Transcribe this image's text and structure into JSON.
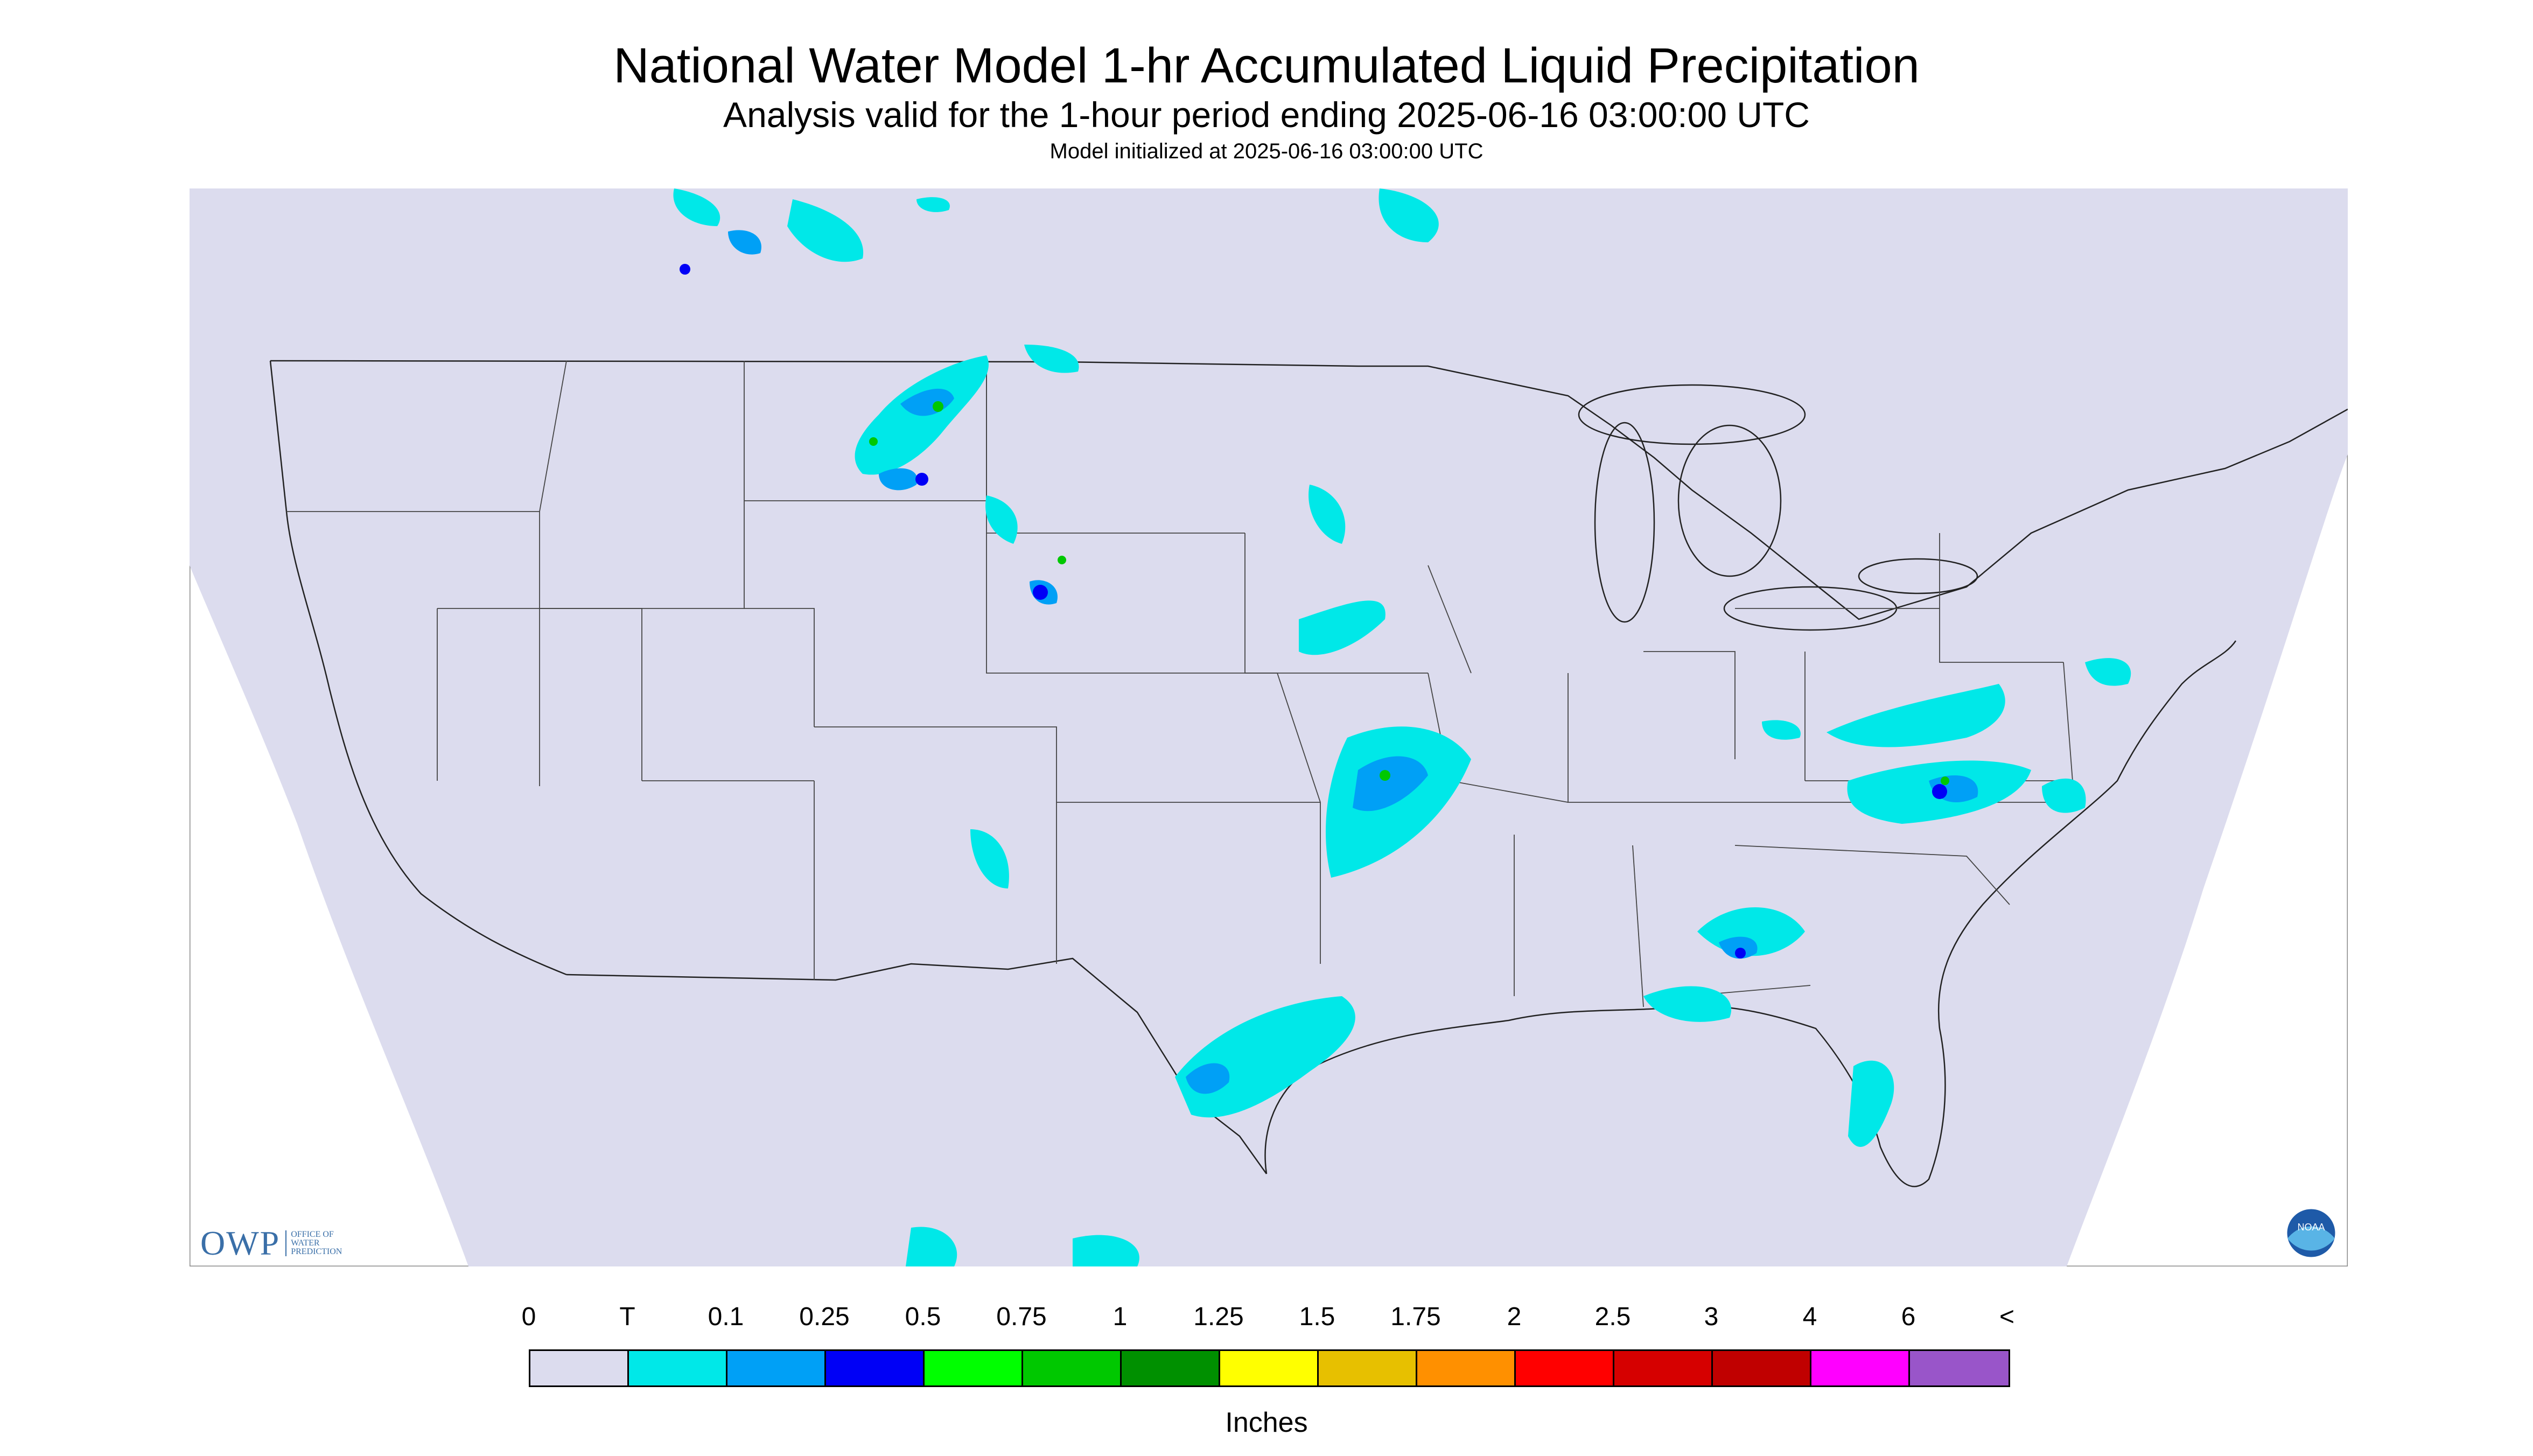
{
  "header": {
    "title": "National Water Model 1-hr Accumulated Liquid Precipitation",
    "subtitle": "Analysis valid for the 1-hour period ending 2025-06-16 03:00:00 UTC",
    "init": "Model initialized at 2025-06-16 03:00:00 UTC"
  },
  "legend": {
    "labels": [
      "0",
      "T",
      "0.1",
      "0.25",
      "0.5",
      "0.75",
      "1",
      "1.25",
      "1.5",
      "1.75",
      "2",
      "2.5",
      "3",
      "4",
      "6",
      "<"
    ],
    "colors": [
      "#dcdcee",
      "#00e8e8",
      "#00a0f6",
      "#0000f6",
      "#00ff00",
      "#00c800",
      "#009000",
      "#ffff00",
      "#e7c000",
      "#ff9000",
      "#ff0000",
      "#d60000",
      "#c00000",
      "#ff00ff",
      "#9955c9"
    ],
    "units": "Inches"
  },
  "logos": {
    "owp_big": "OWP",
    "owp_small": [
      "OFFICE OF",
      "WATER",
      "PREDICTION"
    ],
    "noaa": "NOAA"
  },
  "map": {
    "region": "contiguous United States",
    "background_color": "#dcdcee",
    "outside_domain_color": "#ffffff",
    "precip_light_color": "#00e8e8",
    "precip_medium_color": "#00a0f6",
    "precip_heavy_color": "#0000f6",
    "precip_green_color": "#00c800"
  }
}
